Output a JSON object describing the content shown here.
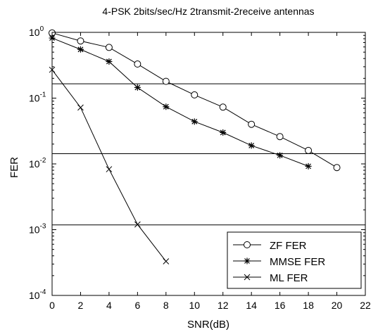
{
  "chart_data": {
    "type": "line",
    "title": "4-PSK 2bits/sec/Hz 2transmit-2receive antennas",
    "xlabel": "SNR(dB)",
    "ylabel": "FER",
    "xlim": [
      0,
      22
    ],
    "ylim": [
      0.0001,
      1
    ],
    "yscale": "log",
    "xticks": [
      0,
      2,
      4,
      6,
      8,
      10,
      12,
      14,
      16,
      18,
      20,
      22
    ],
    "yticks": [
      {
        "base": "10",
        "exp": "0",
        "value": 1
      },
      {
        "base": "10",
        "exp": "-1",
        "value": 0.1
      },
      {
        "base": "10",
        "exp": "-2",
        "value": 0.01
      },
      {
        "base": "10",
        "exp": "-3",
        "value": 0.001
      },
      {
        "base": "10",
        "exp": "-4",
        "value": 0.0001
      }
    ],
    "gridlines_y": [
      0.165,
      0.0143,
      0.00118
    ],
    "legend_position": "bottom-right",
    "series": [
      {
        "name": "ZF FER",
        "marker": "circle",
        "x": [
          0,
          2,
          4,
          6,
          8,
          10,
          12,
          14,
          16,
          18,
          20
        ],
        "y": [
          0.98,
          0.74,
          0.59,
          0.33,
          0.18,
          0.112,
          0.073,
          0.04,
          0.026,
          0.016,
          0.0088
        ]
      },
      {
        "name": "MMSE FER",
        "marker": "asterisk",
        "x": [
          0,
          2,
          4,
          6,
          8,
          10,
          12,
          14,
          16,
          18
        ],
        "y": [
          0.82,
          0.55,
          0.36,
          0.145,
          0.074,
          0.044,
          0.03,
          0.019,
          0.0135,
          0.0092
        ]
      },
      {
        "name": "ML FER",
        "marker": "x",
        "x": [
          0,
          2,
          4,
          6,
          8
        ],
        "y": [
          0.27,
          0.072,
          0.0083,
          0.0012,
          0.00033
        ]
      }
    ]
  }
}
